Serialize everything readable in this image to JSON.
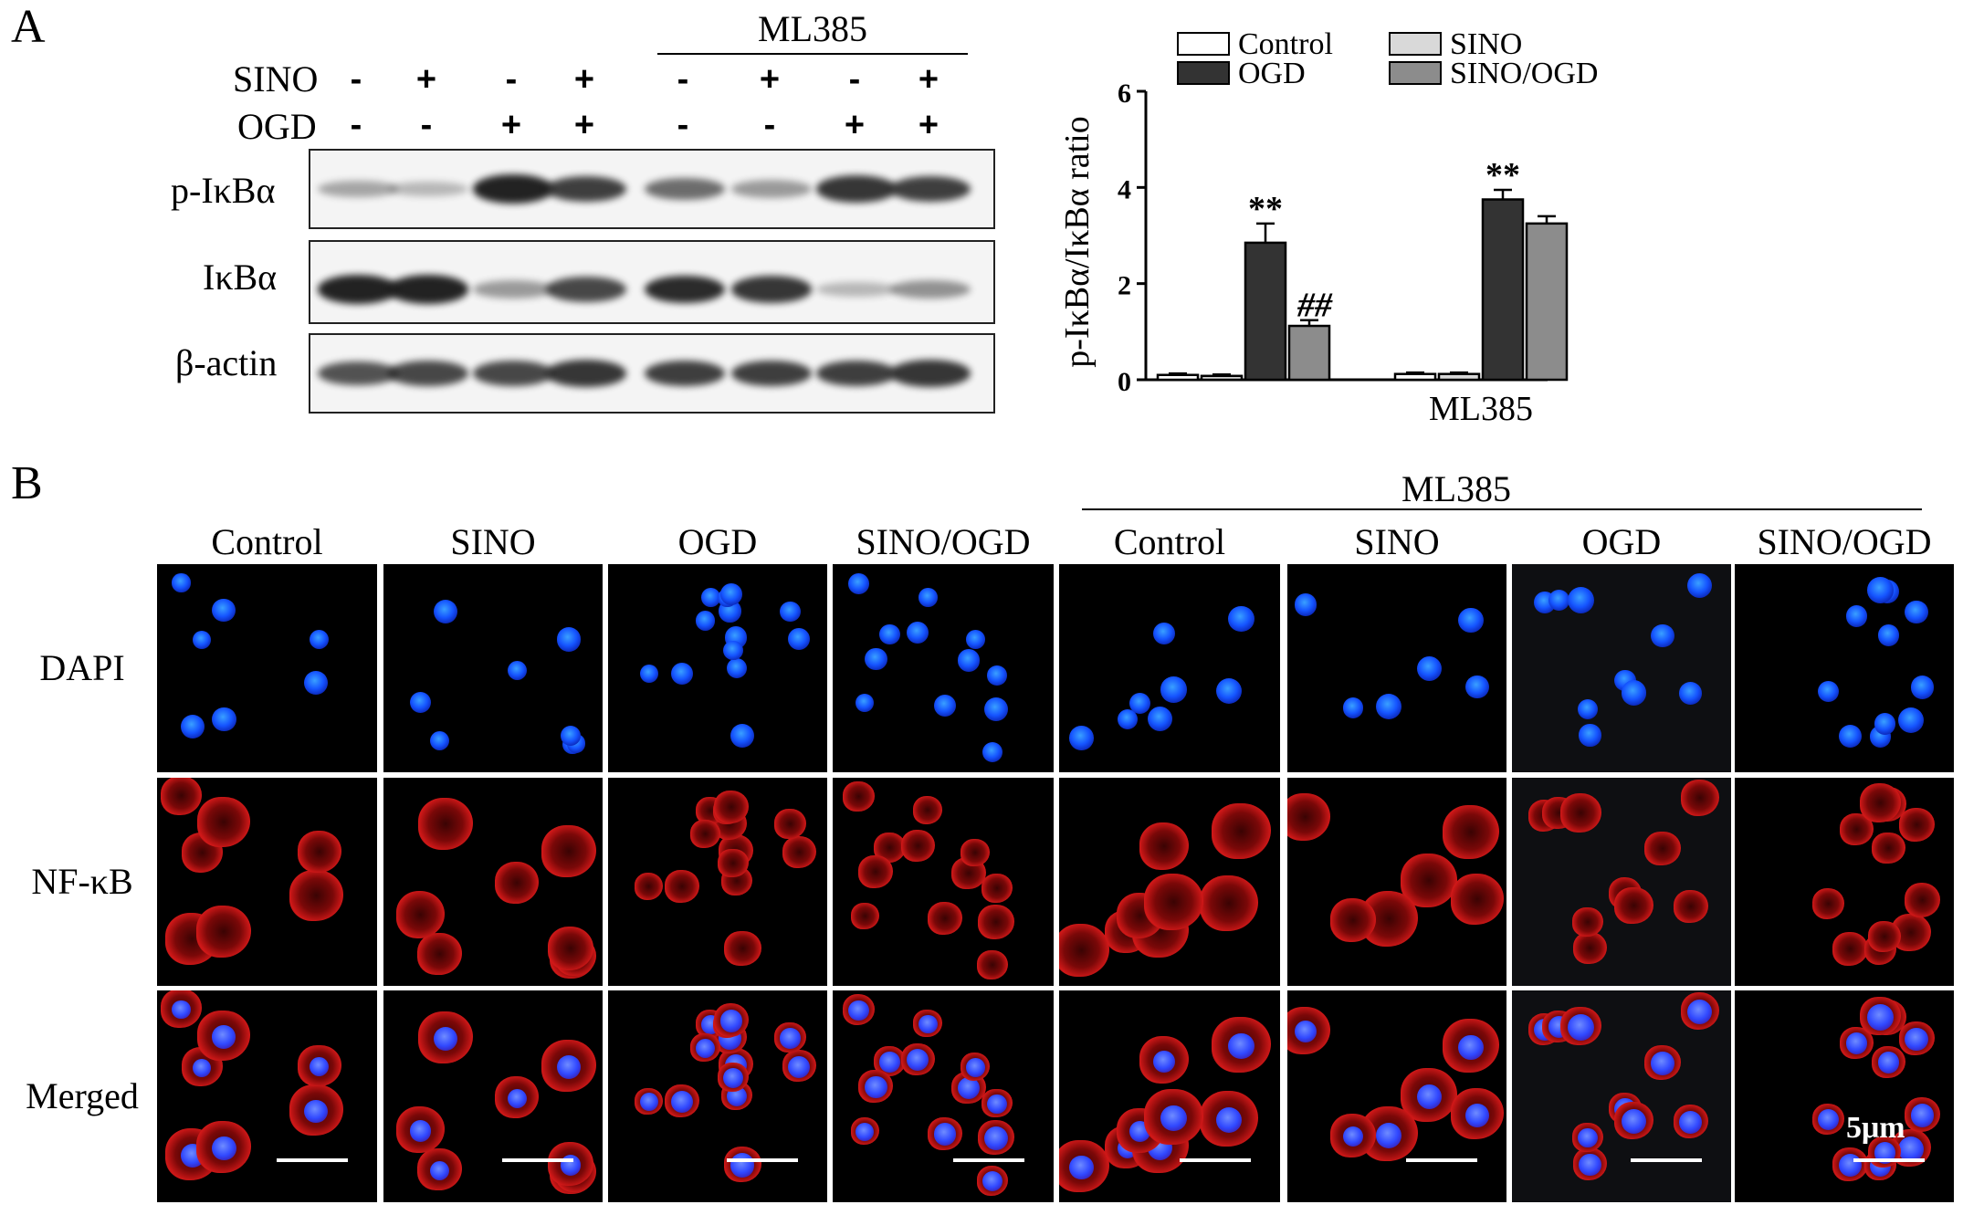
{
  "panel_a": {
    "letter": "A",
    "group_label": "ML385",
    "row_labels": [
      "SINO",
      "OGD"
    ],
    "sino_signs": [
      "-",
      "+",
      "-",
      "+",
      "-",
      "+",
      "-",
      "+"
    ],
    "ogd_signs": [
      "-",
      "-",
      "+",
      "+",
      "-",
      "-",
      "+",
      "+"
    ],
    "blots": [
      {
        "name": "p-IκBα",
        "intensity": [
          0.25,
          0.15,
          0.95,
          0.8,
          0.55,
          0.3,
          0.85,
          0.8
        ]
      },
      {
        "name": "IκBα",
        "intensity": [
          0.95,
          0.95,
          0.3,
          0.75,
          0.9,
          0.85,
          0.15,
          0.35
        ]
      },
      {
        "name": "β-actin",
        "intensity": [
          0.7,
          0.75,
          0.75,
          0.85,
          0.8,
          0.8,
          0.8,
          0.85
        ]
      }
    ]
  },
  "chart_data": {
    "type": "bar",
    "ylabel": "p-IκBα/IκBα ratio",
    "ylim": [
      0,
      6
    ],
    "yticks": [
      "0",
      "2",
      "4",
      "6"
    ],
    "group_labels": [
      "",
      "ML385"
    ],
    "legend": [
      "Control",
      "OGD",
      "SINO",
      "SINO/OGD"
    ],
    "legend_placement": "top",
    "series": [
      {
        "name": "Control",
        "color": "#ffffff",
        "values": [
          0.1,
          0.12
        ],
        "errors": [
          0.03,
          0.03
        ],
        "annotations": [
          "",
          ""
        ]
      },
      {
        "name": "SINO",
        "color": "#d9d9d9",
        "values": [
          0.08,
          0.12
        ],
        "errors": [
          0.03,
          0.03
        ],
        "annotations": [
          "",
          ""
        ]
      },
      {
        "name": "OGD",
        "color": "#333333",
        "values": [
          2.85,
          3.75
        ],
        "errors": [
          0.4,
          0.2
        ],
        "annotations": [
          "**",
          "**"
        ]
      },
      {
        "name": "SINO/OGD",
        "color": "#8c8c8c",
        "values": [
          1.12,
          3.25
        ],
        "errors": [
          0.12,
          0.15
        ],
        "annotations": [
          "##",
          ""
        ]
      }
    ]
  },
  "panel_b": {
    "letter": "B",
    "group_label": "ML385",
    "columns": [
      "Control",
      "SINO",
      "OGD",
      "SINO/OGD",
      "Control",
      "SINO",
      "OGD",
      "SINO/OGD"
    ],
    "rows": [
      "DAPI",
      "NF-κB",
      "Merged"
    ],
    "scale_label": "5μm"
  }
}
